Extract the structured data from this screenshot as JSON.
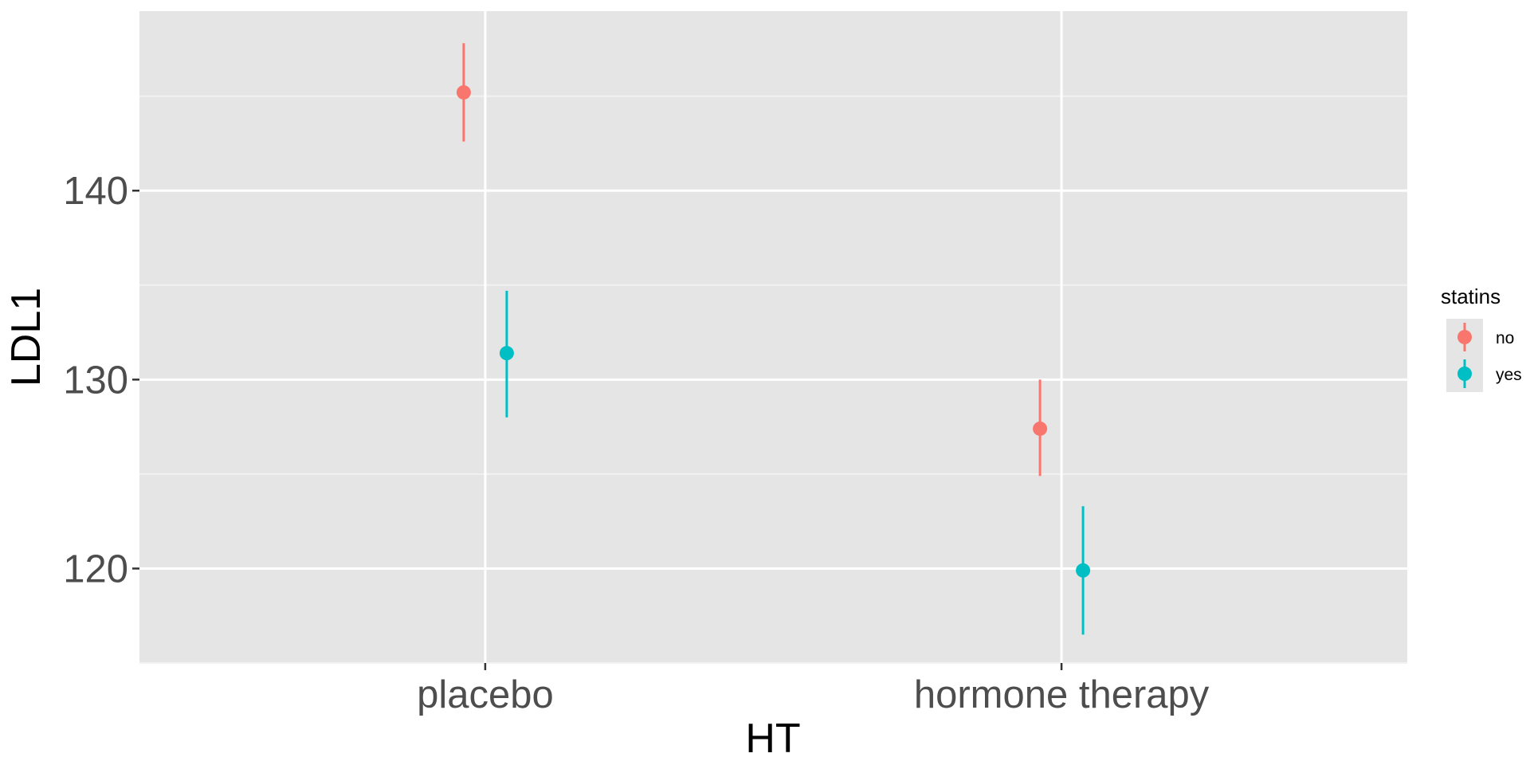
{
  "chart_data": {
    "type": "scatter",
    "title": "",
    "xlabel": "HT",
    "ylabel": "LDL1",
    "categories": [
      "placebo",
      "hormone therapy"
    ],
    "ylim": [
      115,
      149.5
    ],
    "yticks": [
      120,
      130,
      140
    ],
    "grid": true,
    "legend": {
      "title": "statins",
      "position": "right"
    },
    "series": [
      {
        "name": "no",
        "color": "#F8766D",
        "values": [
          145.2,
          127.4
        ],
        "lower": [
          142.6,
          124.9
        ],
        "upper": [
          147.8,
          130.0
        ]
      },
      {
        "name": "yes",
        "color": "#00BFC4",
        "values": [
          131.4,
          119.9
        ],
        "lower": [
          128.0,
          116.5
        ],
        "upper": [
          134.7,
          123.3
        ]
      }
    ]
  }
}
